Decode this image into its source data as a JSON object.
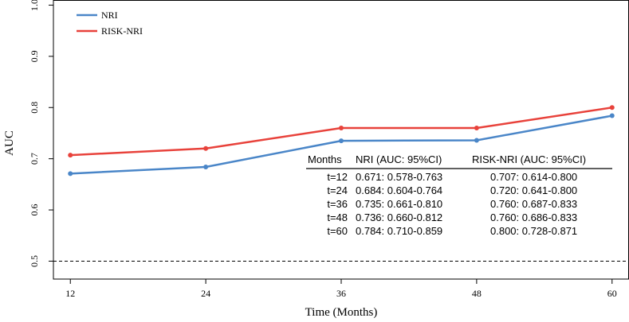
{
  "chart_data": {
    "type": "line",
    "title": "",
    "xlabel": "Time (Months)",
    "ylabel": "AUC",
    "x": [
      12,
      24,
      36,
      48,
      60
    ],
    "xticks": [
      "12",
      "24",
      "36",
      "48",
      "60"
    ],
    "yticks": [
      "0.5",
      "0.6",
      "0.7",
      "0.8",
      "0.9",
      "1.0"
    ],
    "xlim": [
      10.5,
      61.5
    ],
    "ylim": [
      0.465,
      1.01
    ],
    "reference_line": {
      "y": 0.5,
      "style": "dashed"
    },
    "legend_position": "top-left",
    "series": [
      {
        "name": "NRI",
        "color": "#4a86c8",
        "values": [
          0.671,
          0.684,
          0.735,
          0.736,
          0.784
        ]
      },
      {
        "name": "RISK-NRI",
        "color": "#e8423b",
        "values": [
          0.707,
          0.72,
          0.76,
          0.76,
          0.8
        ]
      }
    ],
    "table": {
      "headers": [
        "Months",
        "NRI (AUC: 95%CI)",
        "RISK-NRI (AUC: 95%CI)"
      ],
      "rows": [
        [
          "t=12",
          "0.671: 0.578-0.763",
          "0.707: 0.614-0.800"
        ],
        [
          "t=24",
          "0.684: 0.604-0.764",
          "0.720: 0.641-0.800"
        ],
        [
          "t=36",
          "0.735: 0.661-0.810",
          "0.760: 0.687-0.833"
        ],
        [
          "t=48",
          "0.736: 0.660-0.812",
          "0.760: 0.686-0.833"
        ],
        [
          "t=60",
          "0.784: 0.710-0.859",
          "0.800: 0.728-0.871"
        ]
      ]
    }
  }
}
